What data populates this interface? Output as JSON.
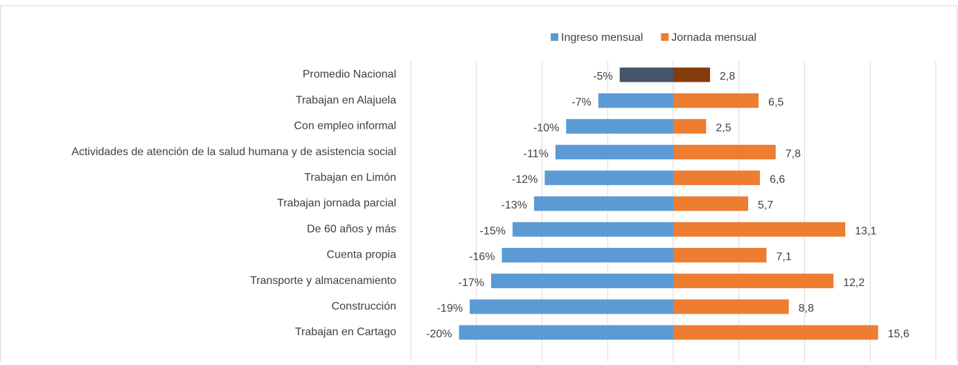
{
  "chart_data": {
    "type": "diverging-bar",
    "categories": [
      "Promedio Nacional",
      "Trabajan en Alajuela",
      "Con empleo informal",
      "Actividades de atención de la salud humana y de asistencia social",
      "Trabajan en Limón",
      "Trabajan jornada parcial",
      "De 60 años y más",
      "Cuenta propia",
      "Transporte y almacenamiento",
      "Construcción",
      "Trabajan en Cartago"
    ],
    "series": [
      {
        "name": "Ingreso mensual",
        "color": "#5b9bd5",
        "highlight_color": "#44546a",
        "axis": "x2",
        "values": [
          -5,
          -7,
          -10,
          -11,
          -12,
          -13,
          -15,
          -16,
          -17,
          -19,
          -20
        ],
        "value_labels": [
          "-5%",
          "-7%",
          "-10%",
          "-11%",
          "-12%",
          "-13%",
          "-15%",
          "-16%",
          "-17%",
          "-19%",
          "-20%"
        ]
      },
      {
        "name": "Jornada mensual",
        "color": "#ed7d31",
        "highlight_color": "#843c0c",
        "values": [
          2.8,
          6.5,
          2.5,
          7.8,
          6.6,
          5.7,
          13.1,
          7.1,
          12.2,
          8.8,
          15.6
        ],
        "value_labels": [
          "2,8",
          "6,5",
          "2,5",
          "7,8",
          "6,6",
          "5,7",
          "13,1",
          "7,1",
          "12,2",
          "8,8",
          "15,6"
        ]
      }
    ],
    "highlight_index": 0,
    "xlim": [
      -20,
      20
    ],
    "xticks": [
      -20,
      -15,
      -10,
      -5,
      0,
      5,
      10,
      15,
      20
    ],
    "x2lim": [
      -24.5,
      24.5
    ],
    "grid": true,
    "legend": "top"
  }
}
